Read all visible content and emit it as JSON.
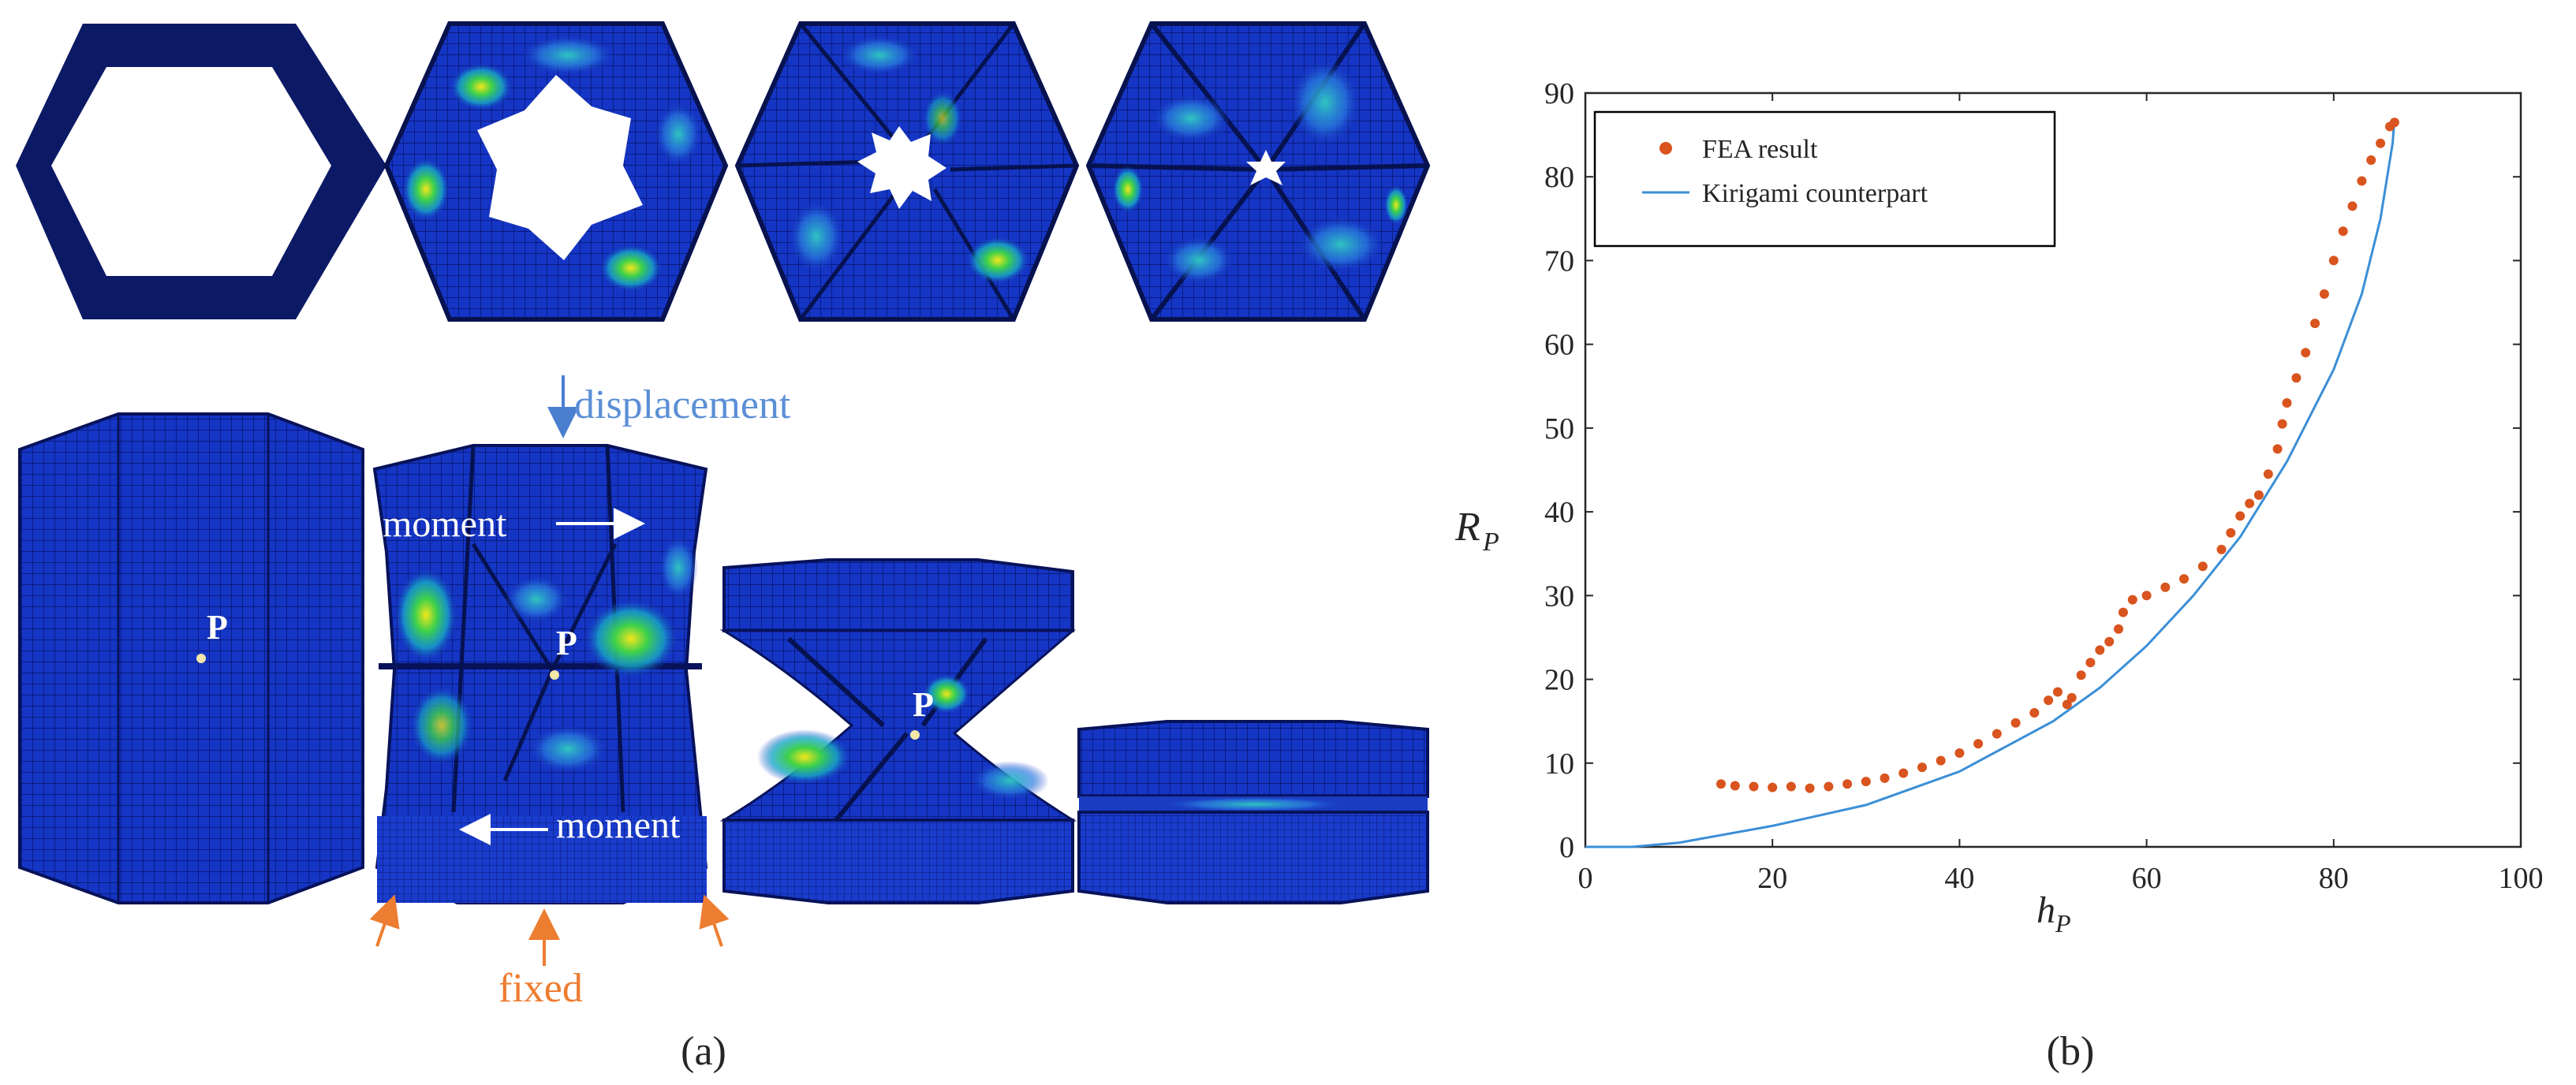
{
  "left_panel": {
    "caption": "(a)",
    "annotations": {
      "displacement": "displacement",
      "moment_top": "moment",
      "moment_bottom": "moment",
      "fixed": "fixed",
      "point_label": "P"
    },
    "colors": {
      "mesh_base": "#1030b8",
      "mesh_dark": "#0a1e7c",
      "arrow_blue": "#4a7fd0",
      "arrow_orange": "#ed7d31",
      "hot_green": "#39d14a",
      "hot_yellow": "#e8e020"
    }
  },
  "right_panel": {
    "caption": "(b)",
    "chart_data": {
      "type": "scatter",
      "xlabel": "h_P",
      "ylabel": "R_P",
      "xlim": [
        0,
        100
      ],
      "ylim": [
        0,
        90
      ],
      "xticks": [
        0,
        20,
        40,
        60,
        80,
        100
      ],
      "yticks": [
        0,
        10,
        20,
        30,
        40,
        50,
        60,
        70,
        80,
        90
      ],
      "grid": false,
      "legend_position": "top-left",
      "series": [
        {
          "name": "FEA result",
          "kind": "scatter",
          "color": "#d9541e",
          "points": [
            [
              14.5,
              7.5
            ],
            [
              16,
              7.3
            ],
            [
              18,
              7.2
            ],
            [
              20,
              7.1
            ],
            [
              22,
              7.2
            ],
            [
              24,
              7.0
            ],
            [
              26,
              7.2
            ],
            [
              28,
              7.5
            ],
            [
              30,
              7.8
            ],
            [
              32,
              8.2
            ],
            [
              34,
              8.8
            ],
            [
              36,
              9.5
            ],
            [
              38,
              10.3
            ],
            [
              40,
              11.2
            ],
            [
              42,
              12.3
            ],
            [
              44,
              13.5
            ],
            [
              46,
              14.8
            ],
            [
              48,
              16.0
            ],
            [
              49.5,
              17.5
            ],
            [
              50.5,
              18.5
            ],
            [
              51.5,
              17.0
            ],
            [
              52,
              17.8
            ],
            [
              53,
              20.5
            ],
            [
              54,
              22.0
            ],
            [
              55,
              23.5
            ],
            [
              56,
              24.5
            ],
            [
              57,
              26.0
            ],
            [
              57.5,
              28.0
            ],
            [
              58.5,
              29.5
            ],
            [
              60,
              30.0
            ],
            [
              62,
              31.0
            ],
            [
              64,
              32.0
            ],
            [
              66,
              33.5
            ],
            [
              68,
              35.5
            ],
            [
              69,
              37.5
            ],
            [
              70,
              39.5
            ],
            [
              71,
              41.0
            ],
            [
              72,
              42.0
            ],
            [
              73,
              44.5
            ],
            [
              74,
              47.5
            ],
            [
              74.5,
              50.5
            ],
            [
              75,
              53.0
            ],
            [
              76,
              56.0
            ],
            [
              77,
              59.0
            ],
            [
              78,
              62.5
            ],
            [
              79,
              66.0
            ],
            [
              80,
              70.0
            ],
            [
              81,
              73.5
            ],
            [
              82,
              76.5
            ],
            [
              83,
              79.5
            ],
            [
              84,
              82.0
            ],
            [
              85,
              84.0
            ],
            [
              86,
              86.0
            ],
            [
              86.5,
              86.5
            ]
          ]
        },
        {
          "name": "Kirigami counterpart",
          "kind": "line",
          "color": "#3b8fd6",
          "points": [
            [
              0,
              0
            ],
            [
              5,
              0
            ],
            [
              10,
              0.5
            ],
            [
              20,
              2.5
            ],
            [
              30,
              5.0
            ],
            [
              40,
              9.0
            ],
            [
              50,
              15.0
            ],
            [
              55,
              19.0
            ],
            [
              60,
              24.0
            ],
            [
              65,
              30.0
            ],
            [
              70,
              37.0
            ],
            [
              75,
              46.0
            ],
            [
              80,
              57.0
            ],
            [
              83,
              66.0
            ],
            [
              85,
              75.0
            ],
            [
              86.3,
              84.0
            ],
            [
              86.5,
              87.0
            ]
          ]
        }
      ]
    }
  }
}
